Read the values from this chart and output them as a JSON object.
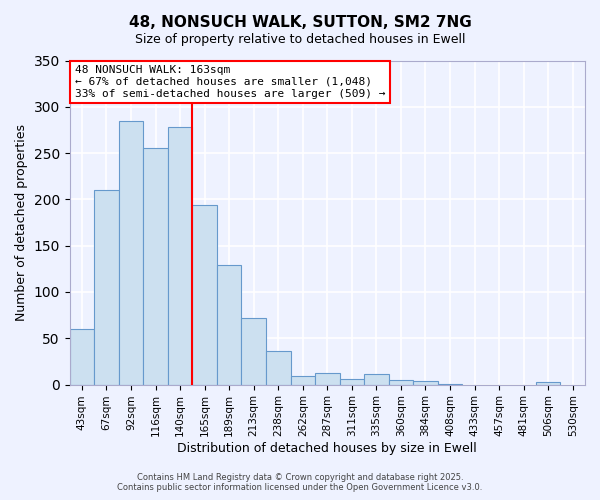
{
  "title": "48, NONSUCH WALK, SUTTON, SM2 7NG",
  "subtitle": "Size of property relative to detached houses in Ewell",
  "xlabel": "Distribution of detached houses by size in Ewell",
  "ylabel": "Number of detached properties",
  "bin_labels": [
    "43sqm",
    "67sqm",
    "92sqm",
    "116sqm",
    "140sqm",
    "165sqm",
    "189sqm",
    "213sqm",
    "238sqm",
    "262sqm",
    "287sqm",
    "311sqm",
    "335sqm",
    "360sqm",
    "384sqm",
    "408sqm",
    "433sqm",
    "457sqm",
    "481sqm",
    "506sqm",
    "530sqm"
  ],
  "bar_values": [
    60,
    210,
    285,
    255,
    278,
    194,
    129,
    72,
    36,
    9,
    13,
    6,
    11,
    5,
    4,
    1,
    0,
    0,
    0,
    3,
    0
  ],
  "bar_color": "#cce0f0",
  "bar_edgecolor": "#6699cc",
  "vline_pos": 4.5,
  "vline_color": "red",
  "ylim": [
    0,
    350
  ],
  "yticks": [
    0,
    50,
    100,
    150,
    200,
    250,
    300,
    350
  ],
  "annotation_line1": "48 NONSUCH WALK: 163sqm",
  "annotation_line2": "← 67% of detached houses are smaller (1,048)",
  "annotation_line3": "33% of semi-detached houses are larger (509) →",
  "annotation_box_facecolor": "white",
  "annotation_box_edgecolor": "red",
  "footer_line1": "Contains HM Land Registry data © Crown copyright and database right 2025.",
  "footer_line2": "Contains public sector information licensed under the Open Government Licence v3.0.",
  "background_color": "#eef2ff",
  "grid_color": "white"
}
